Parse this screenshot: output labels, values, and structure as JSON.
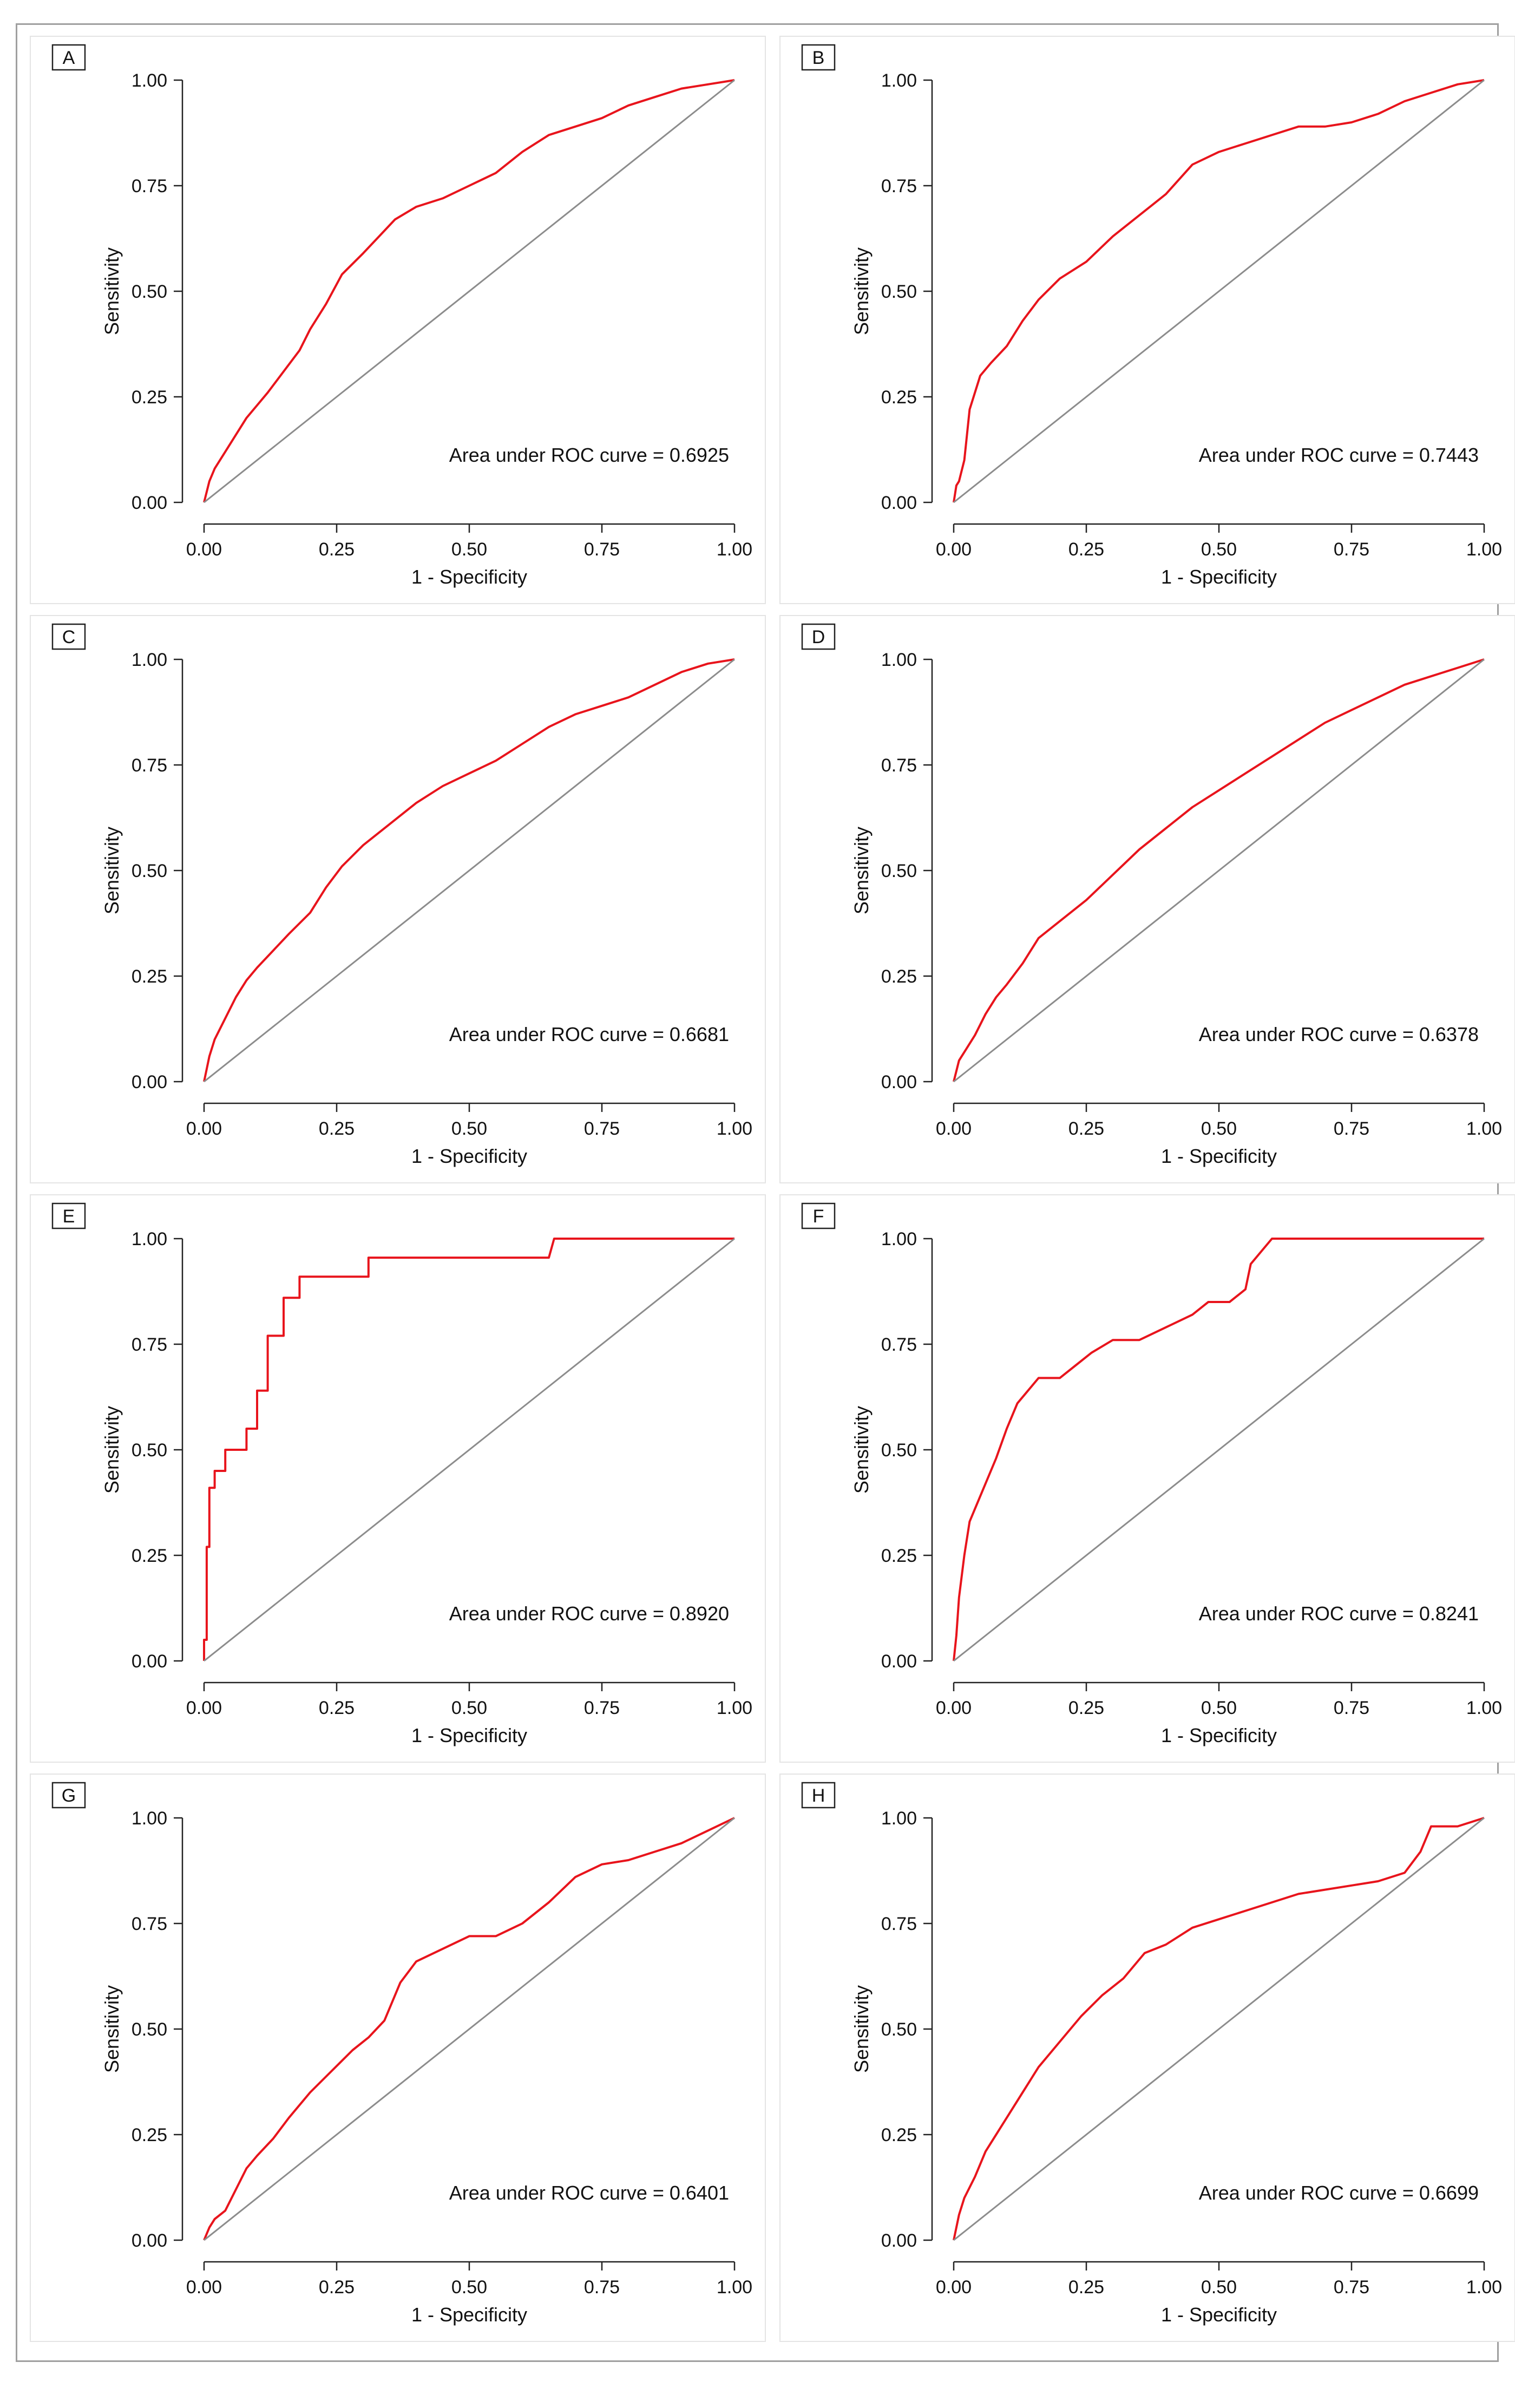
{
  "figure": {
    "colors": {
      "roc_curve": "#e8141c",
      "reference_line": "#8c8c8c",
      "axis": "#222222"
    }
  },
  "chart_data": [
    {
      "panel": "A",
      "type": "line",
      "title": "",
      "xlabel": "1 - Specificity",
      "ylabel": "Sensitivity",
      "xlim": [
        0,
        1
      ],
      "ylim": [
        0,
        1
      ],
      "xticks": [
        "0.00",
        "0.25",
        "0.50",
        "0.75",
        "1.00"
      ],
      "yticks": [
        "0.00",
        "0.25",
        "0.50",
        "0.75",
        "1.00"
      ],
      "annotation": "Area under ROC curve = 0.6925",
      "auc": 0.6925,
      "series": [
        {
          "name": "ROC",
          "x": [
            0,
            0.01,
            0.02,
            0.04,
            0.06,
            0.08,
            0.1,
            0.12,
            0.15,
            0.18,
            0.2,
            0.23,
            0.26,
            0.3,
            0.33,
            0.36,
            0.4,
            0.45,
            0.5,
            0.55,
            0.6,
            0.65,
            0.7,
            0.75,
            0.8,
            0.85,
            0.9,
            0.95,
            1.0
          ],
          "y": [
            0,
            0.05,
            0.08,
            0.12,
            0.16,
            0.2,
            0.23,
            0.26,
            0.31,
            0.36,
            0.41,
            0.47,
            0.54,
            0.59,
            0.63,
            0.67,
            0.7,
            0.72,
            0.75,
            0.78,
            0.83,
            0.87,
            0.89,
            0.91,
            0.94,
            0.96,
            0.98,
            0.99,
            1.0
          ]
        },
        {
          "name": "Reference",
          "x": [
            0,
            1
          ],
          "y": [
            0,
            1
          ]
        }
      ]
    },
    {
      "panel": "B",
      "type": "line",
      "title": "",
      "xlabel": "1 - Specificity",
      "ylabel": "Sensitivity",
      "xlim": [
        0,
        1
      ],
      "ylim": [
        0,
        1
      ],
      "xticks": [
        "0.00",
        "0.25",
        "0.50",
        "0.75",
        "1.00"
      ],
      "yticks": [
        "0.00",
        "0.25",
        "0.50",
        "0.75",
        "1.00"
      ],
      "annotation": "Area under ROC curve = 0.7443",
      "auc": 0.7443,
      "series": [
        {
          "name": "ROC",
          "x": [
            0,
            0.005,
            0.01,
            0.02,
            0.03,
            0.05,
            0.07,
            0.1,
            0.13,
            0.16,
            0.2,
            0.25,
            0.3,
            0.35,
            0.4,
            0.45,
            0.5,
            0.55,
            0.6,
            0.65,
            0.7,
            0.75,
            0.8,
            0.85,
            0.9,
            0.95,
            1.0
          ],
          "y": [
            0,
            0.04,
            0.05,
            0.1,
            0.22,
            0.3,
            0.33,
            0.37,
            0.43,
            0.48,
            0.53,
            0.57,
            0.63,
            0.68,
            0.73,
            0.8,
            0.83,
            0.85,
            0.87,
            0.89,
            0.89,
            0.9,
            0.92,
            0.95,
            0.97,
            0.99,
            1.0
          ]
        },
        {
          "name": "Reference",
          "x": [
            0,
            1
          ],
          "y": [
            0,
            1
          ]
        }
      ]
    },
    {
      "panel": "C",
      "type": "line",
      "title": "",
      "xlabel": "1 - Specificity",
      "ylabel": "Sensitivity",
      "xlim": [
        0,
        1
      ],
      "ylim": [
        0,
        1
      ],
      "xticks": [
        "0.00",
        "0.25",
        "0.50",
        "0.75",
        "1.00"
      ],
      "yticks": [
        "0.00",
        "0.25",
        "0.50",
        "0.75",
        "1.00"
      ],
      "annotation": "Area under ROC curve = 0.6681",
      "auc": 0.6681,
      "series": [
        {
          "name": "ROC",
          "x": [
            0,
            0.01,
            0.02,
            0.04,
            0.06,
            0.08,
            0.1,
            0.13,
            0.16,
            0.2,
            0.23,
            0.26,
            0.3,
            0.35,
            0.4,
            0.45,
            0.5,
            0.55,
            0.6,
            0.65,
            0.7,
            0.75,
            0.8,
            0.85,
            0.9,
            0.95,
            1.0
          ],
          "y": [
            0,
            0.06,
            0.1,
            0.15,
            0.2,
            0.24,
            0.27,
            0.31,
            0.35,
            0.4,
            0.46,
            0.51,
            0.56,
            0.61,
            0.66,
            0.7,
            0.73,
            0.76,
            0.8,
            0.84,
            0.87,
            0.89,
            0.91,
            0.94,
            0.97,
            0.99,
            1.0
          ]
        },
        {
          "name": "Reference",
          "x": [
            0,
            1
          ],
          "y": [
            0,
            1
          ]
        }
      ]
    },
    {
      "panel": "D",
      "type": "line",
      "title": "",
      "xlabel": "1 - Specificity",
      "ylabel": "Sensitivity",
      "xlim": [
        0,
        1
      ],
      "ylim": [
        0,
        1
      ],
      "xticks": [
        "0.00",
        "0.25",
        "0.50",
        "0.75",
        "1.00"
      ],
      "yticks": [
        "0.00",
        "0.25",
        "0.50",
        "0.75",
        "1.00"
      ],
      "annotation": "Area under ROC curve = 0.6378",
      "auc": 0.6378,
      "series": [
        {
          "name": "ROC",
          "x": [
            0,
            0.01,
            0.02,
            0.04,
            0.06,
            0.08,
            0.1,
            0.13,
            0.16,
            0.2,
            0.25,
            0.3,
            0.35,
            0.4,
            0.45,
            0.5,
            0.55,
            0.6,
            0.65,
            0.7,
            0.75,
            0.8,
            0.85,
            0.9,
            0.95,
            1.0
          ],
          "y": [
            0,
            0.05,
            0.07,
            0.11,
            0.16,
            0.2,
            0.23,
            0.28,
            0.34,
            0.38,
            0.43,
            0.49,
            0.55,
            0.6,
            0.65,
            0.69,
            0.73,
            0.77,
            0.81,
            0.85,
            0.88,
            0.91,
            0.94,
            0.96,
            0.98,
            1.0
          ]
        },
        {
          "name": "Reference",
          "x": [
            0,
            1
          ],
          "y": [
            0,
            1
          ]
        }
      ]
    },
    {
      "panel": "E",
      "type": "line",
      "title": "",
      "xlabel": "1 - Specificity",
      "ylabel": "Sensitivity",
      "xlim": [
        0,
        1
      ],
      "ylim": [
        0,
        1
      ],
      "xticks": [
        "0.00",
        "0.25",
        "0.50",
        "0.75",
        "1.00"
      ],
      "yticks": [
        "0.00",
        "0.25",
        "0.50",
        "0.75",
        "1.00"
      ],
      "annotation": "Area under ROC curve = 0.8920",
      "auc": 0.892,
      "series": [
        {
          "name": "ROC",
          "x": [
            0,
            0,
            0.005,
            0.005,
            0.01,
            0.01,
            0.02,
            0.02,
            0.04,
            0.04,
            0.08,
            0.08,
            0.1,
            0.1,
            0.12,
            0.12,
            0.15,
            0.15,
            0.18,
            0.18,
            0.23,
            0.23,
            0.31,
            0.31,
            0.65,
            0.66,
            1.0
          ],
          "y": [
            0,
            0.05,
            0.05,
            0.27,
            0.27,
            0.41,
            0.41,
            0.45,
            0.45,
            0.5,
            0.5,
            0.55,
            0.55,
            0.64,
            0.64,
            0.77,
            0.77,
            0.86,
            0.86,
            0.91,
            0.91,
            0.91,
            0.91,
            0.955,
            0.955,
            1.0,
            1.0
          ]
        },
        {
          "name": "Reference",
          "x": [
            0,
            1
          ],
          "y": [
            0,
            1
          ]
        }
      ]
    },
    {
      "panel": "F",
      "type": "line",
      "title": "",
      "xlabel": "1 - Specificity",
      "ylabel": "Sensitivity",
      "xlim": [
        0,
        1
      ],
      "ylim": [
        0,
        1
      ],
      "xticks": [
        "0.00",
        "0.25",
        "0.50",
        "0.75",
        "1.00"
      ],
      "yticks": [
        "0.00",
        "0.25",
        "0.50",
        "0.75",
        "1.00"
      ],
      "annotation": "Area under ROC curve = 0.8241",
      "auc": 0.8241,
      "series": [
        {
          "name": "ROC",
          "x": [
            0,
            0.005,
            0.01,
            0.02,
            0.03,
            0.04,
            0.06,
            0.08,
            0.1,
            0.12,
            0.14,
            0.16,
            0.2,
            0.23,
            0.26,
            0.3,
            0.35,
            0.4,
            0.45,
            0.48,
            0.52,
            0.55,
            0.56,
            0.58,
            0.6,
            0.7,
            0.8,
            0.9,
            1.0
          ],
          "y": [
            0,
            0.06,
            0.15,
            0.25,
            0.33,
            0.36,
            0.42,
            0.48,
            0.55,
            0.61,
            0.64,
            0.67,
            0.67,
            0.7,
            0.73,
            0.76,
            0.76,
            0.79,
            0.82,
            0.85,
            0.85,
            0.88,
            0.94,
            0.97,
            1.0,
            1.0,
            1.0,
            1.0,
            1.0
          ]
        },
        {
          "name": "Reference",
          "x": [
            0,
            1
          ],
          "y": [
            0,
            1
          ]
        }
      ]
    },
    {
      "panel": "G",
      "type": "line",
      "title": "",
      "xlabel": "1 - Specificity",
      "ylabel": "Sensitivity",
      "xlim": [
        0,
        1
      ],
      "ylim": [
        0,
        1
      ],
      "xticks": [
        "0.00",
        "0.25",
        "0.50",
        "0.75",
        "1.00"
      ],
      "yticks": [
        "0.00",
        "0.25",
        "0.50",
        "0.75",
        "1.00"
      ],
      "annotation": "Area under ROC curve = 0.6401",
      "auc": 0.6401,
      "series": [
        {
          "name": "ROC",
          "x": [
            0,
            0.01,
            0.02,
            0.04,
            0.06,
            0.08,
            0.1,
            0.13,
            0.16,
            0.2,
            0.24,
            0.28,
            0.31,
            0.34,
            0.37,
            0.4,
            0.45,
            0.5,
            0.55,
            0.6,
            0.65,
            0.7,
            0.75,
            0.8,
            0.85,
            0.9,
            0.95,
            1.0
          ],
          "y": [
            0,
            0.03,
            0.05,
            0.07,
            0.12,
            0.17,
            0.2,
            0.24,
            0.29,
            0.35,
            0.4,
            0.45,
            0.48,
            0.52,
            0.61,
            0.66,
            0.69,
            0.72,
            0.72,
            0.75,
            0.8,
            0.86,
            0.89,
            0.9,
            0.92,
            0.94,
            0.97,
            1.0
          ]
        },
        {
          "name": "Reference",
          "x": [
            0,
            1
          ],
          "y": [
            0,
            1
          ]
        }
      ]
    },
    {
      "panel": "H",
      "type": "line",
      "title": "",
      "xlabel": "1 - Specificity",
      "ylabel": "Sensitivity",
      "xlim": [
        0,
        1
      ],
      "ylim": [
        0,
        1
      ],
      "xticks": [
        "0.00",
        "0.25",
        "0.50",
        "0.75",
        "1.00"
      ],
      "yticks": [
        "0.00",
        "0.25",
        "0.50",
        "0.75",
        "1.00"
      ],
      "annotation": "Area under ROC curve = 0.6699",
      "auc": 0.6699,
      "series": [
        {
          "name": "ROC",
          "x": [
            0,
            0.01,
            0.02,
            0.04,
            0.06,
            0.08,
            0.1,
            0.13,
            0.16,
            0.2,
            0.24,
            0.28,
            0.32,
            0.36,
            0.4,
            0.45,
            0.5,
            0.55,
            0.6,
            0.65,
            0.7,
            0.75,
            0.8,
            0.85,
            0.88,
            0.9,
            0.95,
            1.0
          ],
          "y": [
            0,
            0.06,
            0.1,
            0.15,
            0.21,
            0.25,
            0.29,
            0.35,
            0.41,
            0.47,
            0.53,
            0.58,
            0.62,
            0.68,
            0.7,
            0.74,
            0.76,
            0.78,
            0.8,
            0.82,
            0.83,
            0.84,
            0.85,
            0.87,
            0.92,
            0.98,
            0.98,
            1.0
          ]
        },
        {
          "name": "Reference",
          "x": [
            0,
            1
          ],
          "y": [
            0,
            1
          ]
        }
      ]
    }
  ]
}
